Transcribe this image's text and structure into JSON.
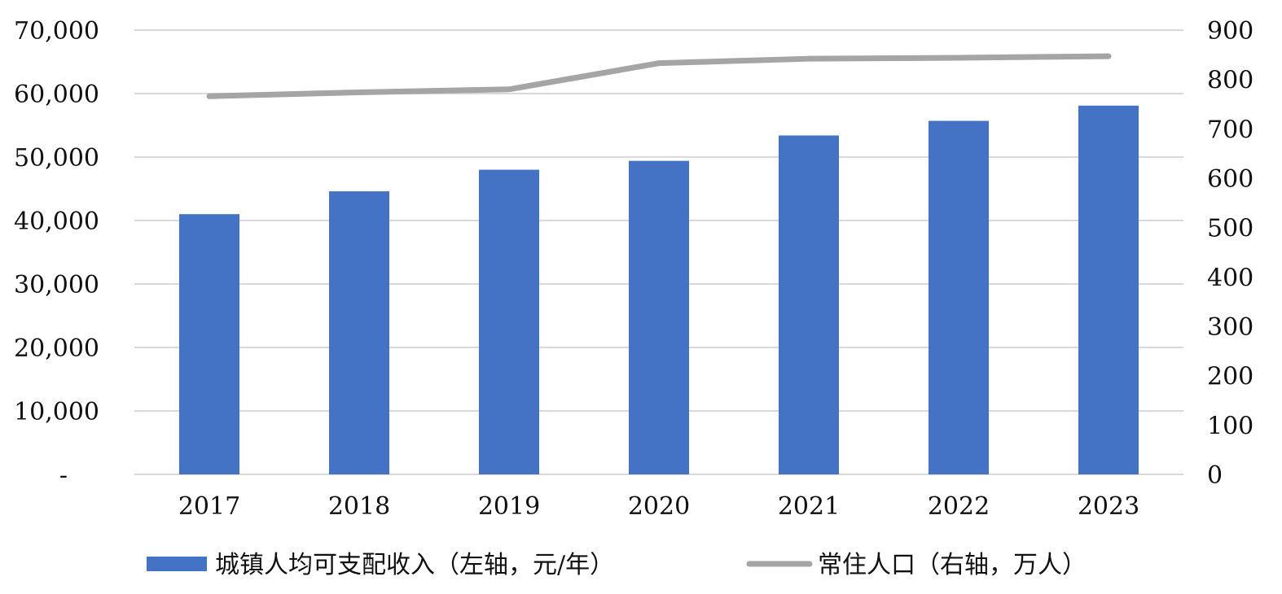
{
  "chart_data": {
    "type": "bar",
    "title": "",
    "xlabel": "",
    "categories": [
      "2017",
      "2018",
      "2019",
      "2020",
      "2021",
      "2022",
      "2023"
    ],
    "series": [
      {
        "name": "城镇人均可支配收入（左轴，元/年）",
        "type": "bar",
        "axis": "left",
        "color": "#4472C4",
        "values": [
          41000,
          44600,
          48000,
          49400,
          53400,
          55700,
          58100
        ]
      },
      {
        "name": "常住人口（右轴，万人）",
        "type": "line",
        "axis": "right",
        "color": "#A5A5A5",
        "values": [
          766,
          774,
          780,
          833,
          842,
          844,
          847
        ]
      }
    ],
    "y_left": {
      "ylim": [
        0,
        70000
      ],
      "ticks": [
        0,
        10000,
        20000,
        30000,
        40000,
        50000,
        60000,
        70000
      ],
      "tick_labels": [
        "-",
        "10,000",
        "20,000",
        "30,000",
        "40,000",
        "50,000",
        "60,000",
        "70,000"
      ]
    },
    "y_right": {
      "ylim": [
        0,
        900
      ],
      "ticks": [
        0,
        100,
        200,
        300,
        400,
        500,
        600,
        700,
        800,
        900
      ],
      "tick_labels": [
        "0",
        "100",
        "200",
        "300",
        "400",
        "500",
        "600",
        "700",
        "800",
        "900"
      ]
    },
    "grid": true,
    "gridline_color": "#D9D9D9",
    "legend_position": "bottom"
  }
}
